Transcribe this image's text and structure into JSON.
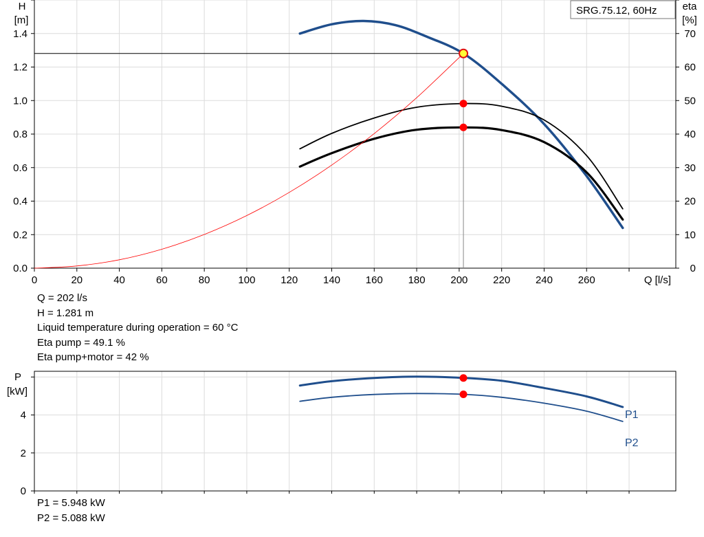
{
  "curve_label": "SRG.75.12, 60Hz",
  "info_top": [
    "Q = 202 l/s",
    "H = 1.281 m",
    "Liquid temperature during operation = 60 °C",
    "Eta pump = 49.1 %",
    "Eta pump+motor = 42 %"
  ],
  "info_bottom": [
    "P1 = 5.948 kW",
    "P2 = 5.088 kW"
  ],
  "chart_data": [
    {
      "type": "line",
      "title": "SRG.75.12, 60Hz",
      "xlabel": "Q [l/s]",
      "ylabel": "H\n[m]",
      "y2label": "eta\n[%]",
      "xlim": [
        0,
        302
      ],
      "ylim": [
        0,
        1.6
      ],
      "y2lim": [
        0,
        80
      ],
      "x_ticks": [
        0,
        20,
        40,
        60,
        80,
        100,
        120,
        140,
        160,
        180,
        200,
        220,
        240,
        260
      ],
      "y_ticks": [
        0.0,
        0.2,
        0.4,
        0.6,
        0.8,
        1.0,
        1.2,
        1.4
      ],
      "y_tick_labels": [
        "0.0",
        "0.2",
        "0.4",
        "0.6",
        "0.8",
        "1.0",
        "1.2",
        "1.4"
      ],
      "y2_ticks": [
        0,
        10,
        20,
        30,
        40,
        50,
        60,
        70
      ],
      "grid": true,
      "series": [
        {
          "axis": "left",
          "color": "#1f4e8c",
          "width": 3.5,
          "points": [
            [
              125,
              1.4
            ],
            [
              140,
              1.455
            ],
            [
              155,
              1.475
            ],
            [
              170,
              1.45
            ],
            [
              185,
              1.38
            ],
            [
              202,
              1.281
            ],
            [
              220,
              1.1
            ],
            [
              240,
              0.86
            ],
            [
              260,
              0.55
            ],
            [
              277,
              0.24
            ]
          ]
        },
        {
          "axis": "right",
          "color": "#000000",
          "width": 1.8,
          "points": [
            [
              125,
              35.6
            ],
            [
              140,
              40.2
            ],
            [
              160,
              44.8
            ],
            [
              180,
              48.0
            ],
            [
              202,
              49.1
            ],
            [
              220,
              48.3
            ],
            [
              240,
              44.2
            ],
            [
              260,
              33.6
            ],
            [
              277,
              17.7
            ]
          ]
        },
        {
          "axis": "right",
          "color": "#000000",
          "width": 3.2,
          "points": [
            [
              125,
              30.3
            ],
            [
              140,
              34.3
            ],
            [
              160,
              38.6
            ],
            [
              180,
              41.3
            ],
            [
              202,
              42.0
            ],
            [
              220,
              41.2
            ],
            [
              240,
              37.6
            ],
            [
              260,
              28.6
            ],
            [
              277,
              14.5
            ]
          ]
        },
        {
          "axis": "left",
          "color": "#ff0000",
          "width": 0.8,
          "points": [
            [
              0,
              0.0
            ],
            [
              20,
              0.013
            ],
            [
              40,
              0.05
            ],
            [
              60,
              0.113
            ],
            [
              80,
              0.201
            ],
            [
              100,
              0.314
            ],
            [
              120,
              0.452
            ],
            [
              140,
              0.615
            ],
            [
              160,
              0.803
            ],
            [
              180,
              1.017
            ],
            [
              202,
              1.281
            ]
          ]
        }
      ],
      "operating_point": {
        "x": 202,
        "y": 1.281
      },
      "marker_points": [
        {
          "axis": "right",
          "x": 202,
          "y": 49.1,
          "color": "#ff0000"
        },
        {
          "axis": "right",
          "x": 202,
          "y": 42.0,
          "color": "#ff0000"
        }
      ]
    },
    {
      "type": "line",
      "ylabel": "P\n[kW]",
      "xlim": [
        0,
        302
      ],
      "ylim": [
        0,
        6.3
      ],
      "y_ticks": [
        0,
        2,
        4
      ],
      "y_tick_labels": [
        "0",
        "2",
        "4"
      ],
      "grid": true,
      "series": [
        {
          "name": "P1",
          "color": "#1f4e8c",
          "width": 3,
          "points": [
            [
              125,
              5.55
            ],
            [
              140,
              5.78
            ],
            [
              160,
              5.95
            ],
            [
              180,
              6.02
            ],
            [
              202,
              5.948
            ],
            [
              220,
              5.8
            ],
            [
              240,
              5.42
            ],
            [
              260,
              4.98
            ],
            [
              277,
              4.42
            ]
          ]
        },
        {
          "name": "P2",
          "color": "#1f4e8c",
          "width": 1.8,
          "points": [
            [
              125,
              4.72
            ],
            [
              140,
              4.93
            ],
            [
              160,
              5.08
            ],
            [
              180,
              5.13
            ],
            [
              202,
              5.088
            ],
            [
              220,
              4.93
            ],
            [
              240,
              4.62
            ],
            [
              260,
              4.2
            ],
            [
              277,
              3.66
            ]
          ]
        }
      ],
      "marker_points": [
        {
          "x": 202,
          "y": 5.948,
          "color": "#ff0000"
        },
        {
          "x": 202,
          "y": 5.088,
          "color": "#ff0000"
        }
      ]
    }
  ]
}
